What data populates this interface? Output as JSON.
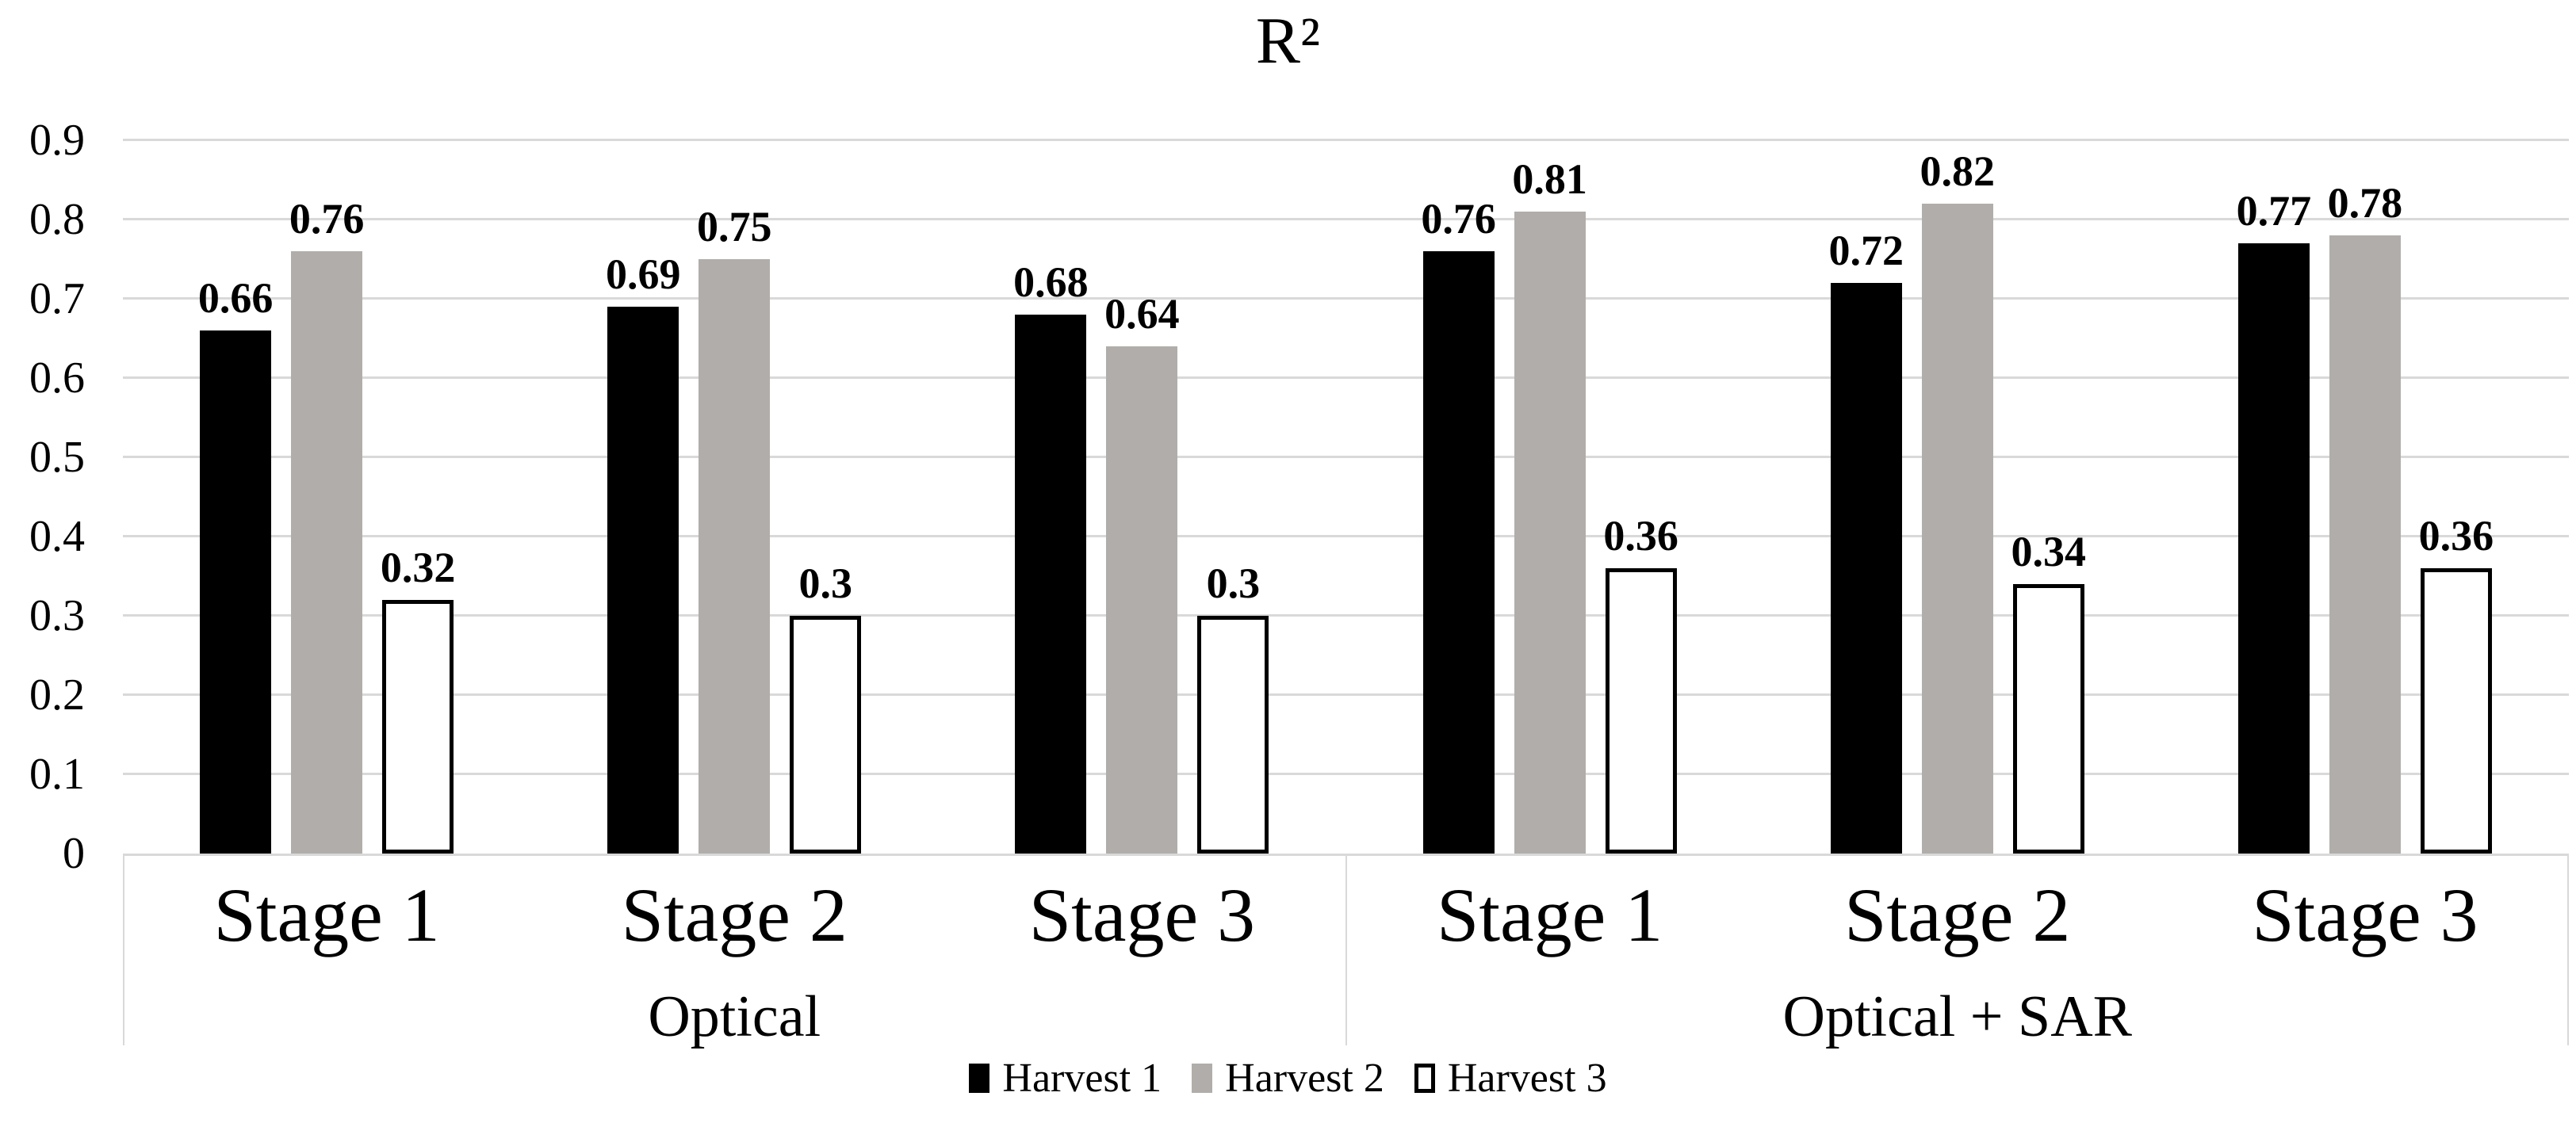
{
  "chart_data": {
    "type": "bar",
    "title": "R²",
    "xlabel": "",
    "ylabel": "",
    "ylim": [
      0,
      0.9
    ],
    "ytick_labels": [
      "0",
      "0.1",
      "0.2",
      "0.3",
      "0.4",
      "0.5",
      "0.6",
      "0.7",
      "0.8",
      "0.9"
    ],
    "grid": true,
    "legend_position": "bottom",
    "sections": [
      {
        "label": "Optical",
        "categories": [
          "Stage 1",
          "Stage 2",
          "Stage 3"
        ]
      },
      {
        "label": "Optical + SAR",
        "categories": [
          "Stage 1",
          "Stage 2",
          "Stage 3"
        ]
      }
    ],
    "categories": [
      "Stage 1",
      "Stage 2",
      "Stage 3",
      "Stage 1",
      "Stage 2",
      "Stage 3"
    ],
    "series": [
      {
        "name": "Harvest 1",
        "color": "#000000",
        "border": "#000000",
        "values": [
          0.66,
          0.69,
          0.68,
          0.76,
          0.72,
          0.77
        ]
      },
      {
        "name": "Harvest 2",
        "color": "#b1adaa",
        "border": "#b1adaa",
        "values": [
          0.76,
          0.75,
          0.64,
          0.81,
          0.82,
          0.78
        ]
      },
      {
        "name": "Harvest 3",
        "color": "#ffffff",
        "border": "#000000",
        "values": [
          0.32,
          0.3,
          0.3,
          0.36,
          0.34,
          0.36
        ]
      }
    ],
    "colors": {
      "grid": "#d9d9d9",
      "axis_line": "#d9d9d9",
      "text": "#000000",
      "background": "#ffffff"
    }
  }
}
